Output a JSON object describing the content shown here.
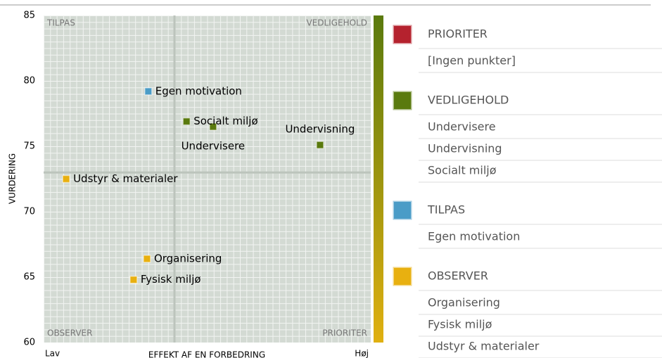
{
  "chart_data": {
    "type": "scatter",
    "y_label": "VURDERING",
    "x_label": "EFFEKT AF EN FORBEDRING",
    "x_low_label": "Lav",
    "x_high_label": "Høj",
    "xlim": [
      0,
      100
    ],
    "ylim": [
      60,
      85
    ],
    "yticks": [
      60,
      65,
      70,
      75,
      80,
      85
    ],
    "thresholds": {
      "x": 40,
      "y": 73
    },
    "quadrants": {
      "top_left": "TILPAS",
      "top_right": "VEDLIGEHOLD",
      "bottom_left": "OBSERVER",
      "bottom_right": "PRIORITER"
    },
    "series": [
      {
        "name": "PRIORITER",
        "color": "#b5222e",
        "empty_text": "[Ingen punkter]",
        "labels": [],
        "x": [],
        "values": [],
        "label_position": []
      },
      {
        "name": "VEDLIGEHOLD",
        "color": "#5a7a0e",
        "labels": [
          "Undervisere",
          "Undervisning",
          "Socialt miljø"
        ],
        "x": [
          51.8,
          84.5,
          43.7
        ],
        "values": [
          76.5,
          75.1,
          76.9
        ],
        "label_position": [
          "below",
          "above",
          "right"
        ]
      },
      {
        "name": "TILPAS",
        "color": "#4a9cc7",
        "labels": [
          "Egen motivation"
        ],
        "x": [
          32.0
        ],
        "values": [
          79.2
        ],
        "label_position": [
          "right"
        ]
      },
      {
        "name": "OBSERVER",
        "color": "#e8b010",
        "labels": [
          "Organisering",
          "Fysisk miljø",
          "Udstyr & materialer"
        ],
        "x": [
          31.6,
          27.5,
          6.9
        ],
        "values": [
          66.4,
          64.8,
          72.5
        ],
        "label_position": [
          "right",
          "right",
          "right"
        ]
      }
    ]
  }
}
